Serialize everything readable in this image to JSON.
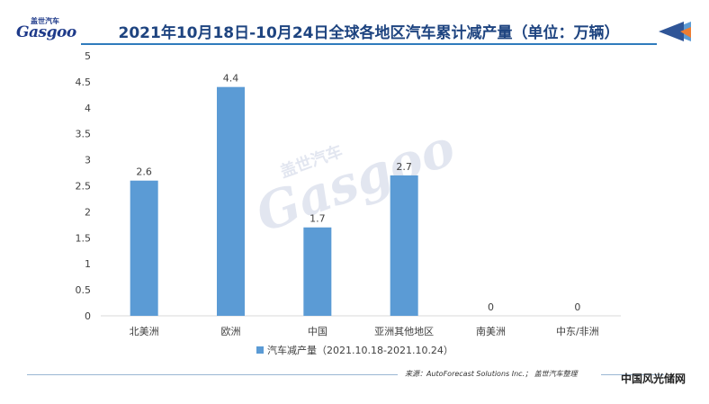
{
  "header": {
    "logo_cn": "盖世汽车",
    "logo_en": "Gasgoo",
    "title": "2021年10月18日-10月24日全球各地区汽车累计减产量（单位：万辆）"
  },
  "watermark": {
    "cn": "盖世汽车",
    "en": "Gasgoo"
  },
  "chart_data": {
    "type": "bar",
    "title": "2021年10月18日-10月24日全球各地区汽车累计减产量（单位：万辆）",
    "categories": [
      "北美洲",
      "欧洲",
      "中国",
      "亚洲其他地区",
      "南美洲",
      "中东/非洲"
    ],
    "series": [
      {
        "name": "汽车减产量（2021.10.18-2021.10.24）",
        "values": [
          2.6,
          4.4,
          1.7,
          2.7,
          0,
          0
        ]
      }
    ],
    "data_labels": [
      "2.6",
      "4.4",
      "1.7",
      "2.7",
      "0",
      "0"
    ],
    "yticks": [
      0,
      0.5,
      1,
      1.5,
      2,
      2.5,
      3,
      3.5,
      4,
      4.5,
      5
    ],
    "ytick_labels": [
      "0",
      "0.5",
      "1",
      "1.5",
      "2",
      "2.5",
      "3",
      "3.5",
      "4",
      "4.5",
      "5"
    ],
    "ylim": [
      0,
      5
    ],
    "xlabel": "",
    "ylabel": "",
    "grid": false,
    "legend_position": "bottom",
    "bar_color": "#5b9bd5"
  },
  "footer": {
    "source": "来源：AutoForecast Solutions Inc.； 盖世汽车整理",
    "corner_watermark": "中国风光储网"
  }
}
